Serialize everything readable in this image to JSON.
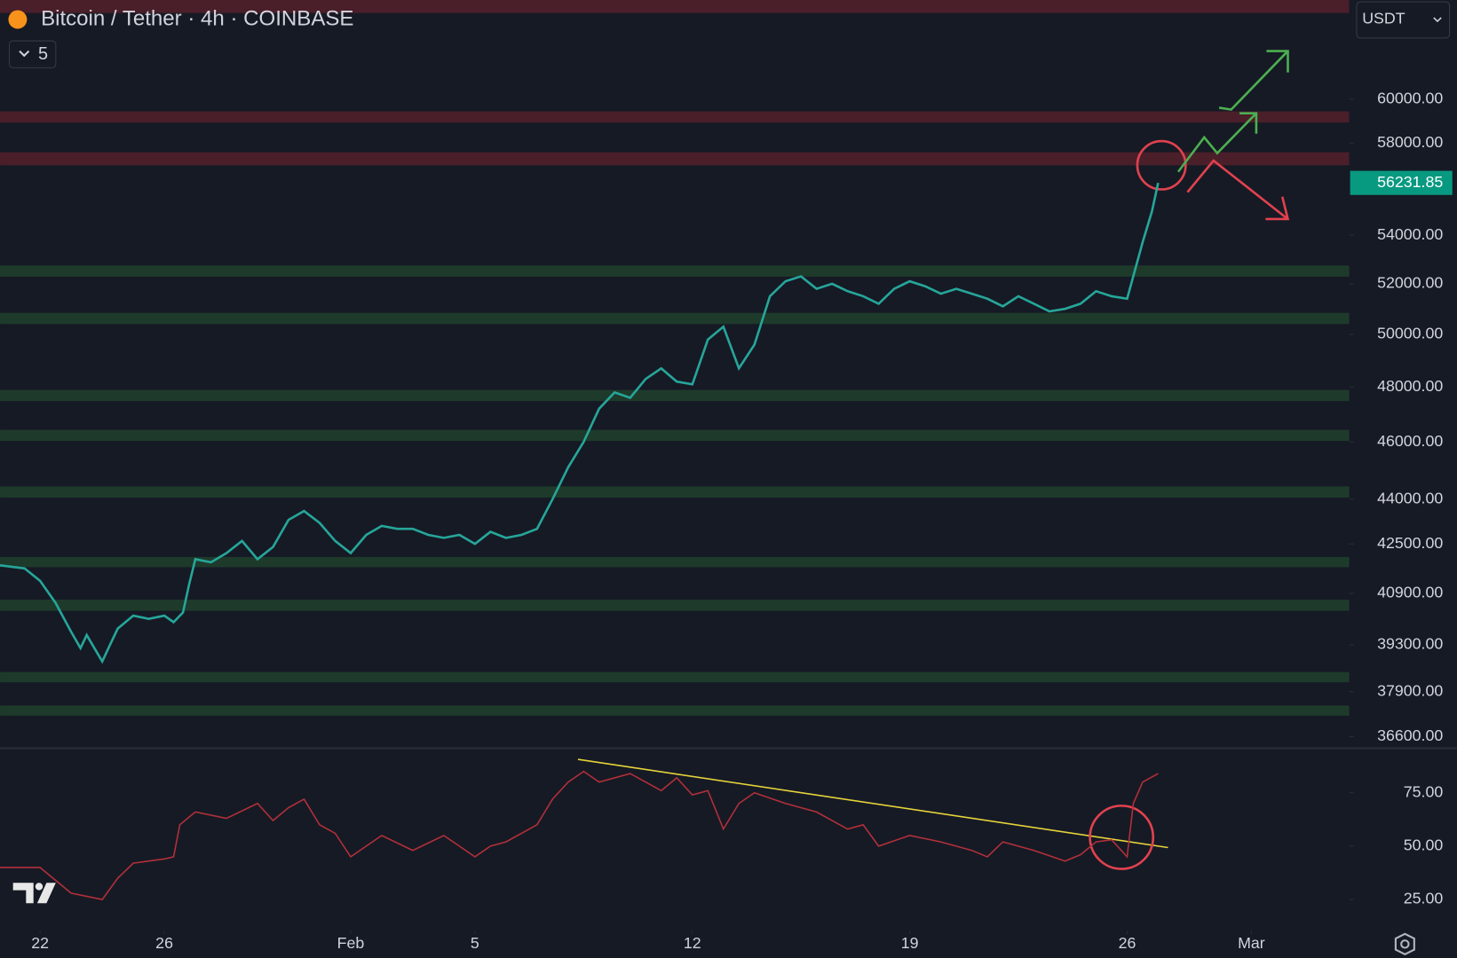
{
  "header": {
    "title": "Bitcoin / Tether · 4h · COINBASE",
    "indicator_count": 5,
    "currency": "USDT"
  },
  "chart_data": [
    {
      "type": "line",
      "log_scale": true,
      "color": "#26a69a",
      "last_price": 56231.85,
      "last_price_color": "#089981",
      "x": [
        -1.3,
        -0.5,
        0,
        0.5,
        1,
        1.3,
        1.5,
        2,
        2.3,
        2.5,
        3,
        3.5,
        4,
        4.3,
        4.6,
        4.8,
        5,
        5.5,
        6,
        6.5,
        7,
        7.5,
        8,
        8.5,
        9,
        9.5,
        10,
        10.5,
        11,
        11.5,
        12,
        12.5,
        13,
        13.5,
        14,
        14.5,
        15,
        15.5,
        16,
        16.5,
        17,
        17.5,
        18,
        18.5,
        19,
        19.5,
        20,
        20.5,
        21,
        21.5,
        22,
        22.5,
        23,
        23.5,
        24,
        24.5,
        25,
        25.5,
        26,
        26.5,
        27,
        27.5,
        28,
        28.5,
        29,
        29.5,
        30,
        30.5,
        31,
        31.5,
        32,
        32.5,
        33,
        33.5,
        34,
        34.5,
        35,
        35.5,
        35.8,
        36
      ],
      "values": [
        41800,
        41700,
        41300,
        40600,
        39700,
        39200,
        39600,
        38800,
        39400,
        39800,
        40200,
        40100,
        40200,
        40000,
        40300,
        41200,
        42000,
        41900,
        42200,
        42600,
        42000,
        42400,
        43300,
        43600,
        43200,
        42600,
        42200,
        42800,
        43100,
        43000,
        43000,
        42800,
        42700,
        42800,
        42500,
        42900,
        42700,
        42800,
        43000,
        44000,
        45100,
        46000,
        47200,
        47800,
        47600,
        48300,
        48700,
        48200,
        48100,
        49800,
        50300,
        48700,
        49600,
        51500,
        52100,
        52300,
        51800,
        52000,
        51700,
        51500,
        51200,
        51800,
        52100,
        51900,
        51600,
        51800,
        51600,
        51400,
        51100,
        51500,
        51200,
        50900,
        51000,
        51200,
        51700,
        51500,
        51400,
        53700,
        55000,
        56231.85
      ],
      "ylim": [
        36300,
        64800
      ],
      "yticks": [
        {
          "value": 60000,
          "label": "60000.00"
        },
        {
          "value": 58000,
          "label": "58000.00"
        },
        {
          "value": 54000,
          "label": "54000.00"
        },
        {
          "value": 52000,
          "label": "52000.00"
        },
        {
          "value": 50000,
          "label": "50000.00"
        },
        {
          "value": 48000,
          "label": "48000.00"
        },
        {
          "value": 46000,
          "label": "46000.00"
        },
        {
          "value": 44000,
          "label": "44000.00"
        },
        {
          "value": 42500,
          "label": "42500.00"
        },
        {
          "value": 40900,
          "label": "40900.00"
        },
        {
          "value": 39300,
          "label": "39300.00"
        },
        {
          "value": 37900,
          "label": "37900.00"
        },
        {
          "value": 36600,
          "label": "36600.00"
        }
      ],
      "xlim": [
        -1.29,
        42.15
      ],
      "xticks": [
        {
          "value": 0,
          "label": "22"
        },
        {
          "value": 4,
          "label": "26"
        },
        {
          "value": 10,
          "label": "Feb"
        },
        {
          "value": 14,
          "label": "5"
        },
        {
          "value": 21,
          "label": "12"
        },
        {
          "value": 28,
          "label": "19"
        },
        {
          "value": 35,
          "label": "26"
        },
        {
          "value": 39,
          "label": "Mar"
        }
      ]
    },
    {
      "type": "line",
      "color": "#b2303a",
      "x": [
        -1.3,
        0,
        1,
        2,
        2.5,
        3,
        4,
        4.3,
        4.5,
        5,
        6,
        7,
        7.5,
        8,
        8.5,
        9,
        9.5,
        10,
        11,
        12,
        13,
        14,
        14.5,
        15,
        16,
        16.5,
        17,
        17.5,
        18,
        19,
        20,
        20.5,
        21,
        21.5,
        22,
        22.5,
        23,
        24,
        25,
        26,
        26.5,
        27,
        28,
        29,
        30,
        30.5,
        31,
        32,
        33,
        33.5,
        34,
        34.5,
        35,
        35.2,
        35.5,
        36
      ],
      "values": [
        40,
        40,
        28,
        25,
        35,
        42,
        44,
        45,
        60,
        66,
        63,
        70,
        62,
        68,
        72,
        60,
        56,
        45,
        55,
        48,
        55,
        45,
        50,
        52,
        60,
        72,
        80,
        85,
        80,
        84,
        76,
        82,
        74,
        76,
        58,
        70,
        75,
        70,
        66,
        58,
        60,
        50,
        55,
        52,
        48,
        45,
        52,
        48,
        43,
        46,
        52,
        53,
        45,
        70,
        80,
        84
      ],
      "ylim": [
        11.5,
        95
      ],
      "xlim": [
        -1.29,
        42.15
      ],
      "yticks": [
        {
          "value": 75,
          "label": "75.00"
        },
        {
          "value": 50,
          "label": "50.00"
        },
        {
          "value": 25,
          "label": "25.00"
        }
      ]
    }
  ]
}
